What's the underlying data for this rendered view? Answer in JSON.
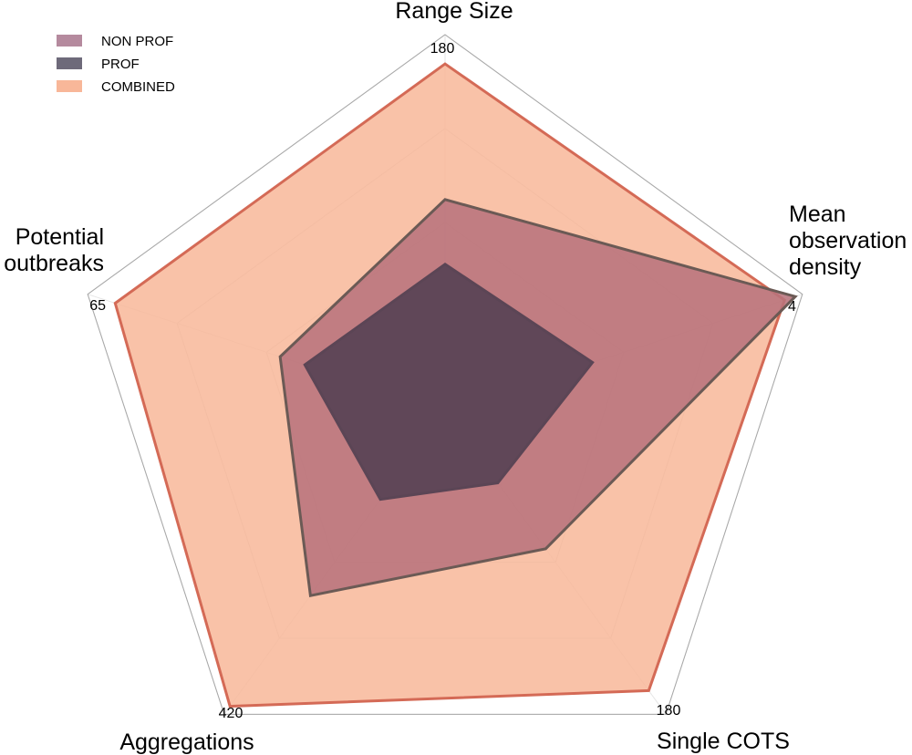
{
  "chart_data": {
    "type": "radar",
    "axes": [
      {
        "title_lines": [
          "Range Size"
        ],
        "max_label": "180",
        "max": 180
      },
      {
        "title_lines": [
          "Mean",
          "observation",
          "density"
        ],
        "max_label": "4",
        "max": 4
      },
      {
        "title_lines": [
          "Single COTS"
        ],
        "max_label": "180",
        "max": 180
      },
      {
        "title_lines": [
          "Aggregations"
        ],
        "max_label": "420",
        "max": 420
      },
      {
        "title_lines": [
          "Potential",
          "outbreaks"
        ],
        "max_label": "65",
        "max": 65
      }
    ],
    "series": [
      {
        "name": "COMBINED",
        "values": [
          166,
          3.8,
          166,
          409,
          60
        ],
        "fill": "#f8b799",
        "stroke": "#d46a56",
        "fill_opacity": 0.85
      },
      {
        "name": "NON PROF",
        "values": [
          101,
          3.92,
          82,
          256,
          30
        ],
        "fill": "#b8737c",
        "stroke": "#6b5a55",
        "fill_opacity": 0.88
      },
      {
        "name": "PROF",
        "values": [
          70,
          1.65,
          43,
          123,
          25.5
        ],
        "fill": "#5b4555",
        "stroke": "#5b4555",
        "fill_opacity": 0.95
      }
    ],
    "legend": [
      {
        "label": "NON PROF",
        "color": "#b58a9e"
      },
      {
        "label": "PROF",
        "color": "#6e6a7a"
      },
      {
        "label": "COMBINED",
        "color": "#f8b799"
      }
    ],
    "grid_levels": 4,
    "grid": true,
    "legend_position": "top-left"
  }
}
